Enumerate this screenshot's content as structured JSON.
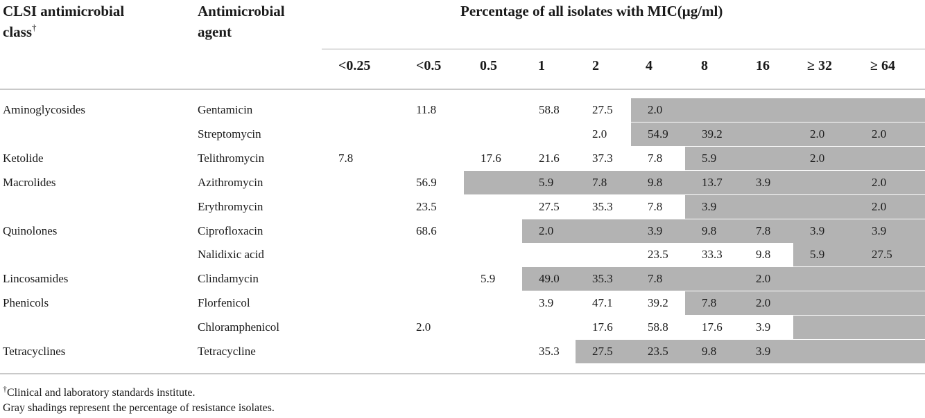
{
  "header": {
    "class_label": "CLSI antimicrobial",
    "class_label_2": "class",
    "class_mark": "†",
    "agent_label": "Antimicrobial",
    "agent_label_2": "agent",
    "percentage_label": "Percentage of all isolates with MIC(μg/ml)"
  },
  "mic_columns": [
    "<0.25",
    "<0.5",
    "0.5",
    "1",
    "2",
    "4",
    "8",
    "16",
    "≥ 32",
    "≥ 64"
  ],
  "rows": [
    {
      "class": "Aminoglycosides",
      "agent": "Gentamicin",
      "values": [
        "",
        "11.8",
        "",
        "58.8",
        "27.5",
        "2.0",
        "",
        "",
        "",
        ""
      ],
      "resistant": [
        false,
        false,
        false,
        false,
        false,
        true,
        true,
        true,
        true,
        true
      ]
    },
    {
      "class": "",
      "agent": "Streptomycin",
      "values": [
        "",
        "",
        "",
        "",
        "2.0",
        "54.9",
        "39.2",
        "",
        "2.0",
        "2.0"
      ],
      "resistant": [
        false,
        false,
        false,
        false,
        false,
        true,
        true,
        true,
        true,
        true
      ]
    },
    {
      "class": "Ketolide",
      "agent": "Telithromycin",
      "values": [
        "7.8",
        "",
        "17.6",
        "21.6",
        "37.3",
        "7.8",
        "5.9",
        "",
        "2.0",
        ""
      ],
      "resistant": [
        false,
        false,
        false,
        false,
        false,
        false,
        true,
        true,
        true,
        true
      ]
    },
    {
      "class": "Macrolides",
      "agent": "Azithromycin",
      "values": [
        "",
        "56.9",
        "",
        "5.9",
        "7.8",
        "9.8",
        "13.7",
        "3.9",
        "",
        "2.0"
      ],
      "resistant": [
        false,
        false,
        true,
        true,
        true,
        true,
        true,
        true,
        true,
        true
      ]
    },
    {
      "class": "",
      "agent": "Erythromycin",
      "values": [
        "",
        "23.5",
        "",
        "27.5",
        "35.3",
        "7.8",
        "3.9",
        "",
        "",
        "2.0"
      ],
      "resistant": [
        false,
        false,
        false,
        false,
        false,
        false,
        true,
        true,
        true,
        true
      ]
    },
    {
      "class": "Quinolones",
      "agent": "Ciprofloxacin",
      "values": [
        "",
        "68.6",
        "",
        "2.0",
        "",
        "3.9",
        "9.8",
        "7.8",
        "3.9",
        "3.9"
      ],
      "resistant": [
        false,
        false,
        false,
        true,
        true,
        true,
        true,
        true,
        true,
        true
      ]
    },
    {
      "class": "",
      "agent": "Nalidixic acid",
      "values": [
        "",
        "",
        "",
        "",
        "",
        "23.5",
        "33.3",
        "9.8",
        "5.9",
        "27.5"
      ],
      "resistant": [
        false,
        false,
        false,
        false,
        false,
        false,
        false,
        false,
        true,
        true
      ]
    },
    {
      "class": "Lincosamides",
      "agent": "Clindamycin",
      "values": [
        "",
        "",
        "5.9",
        "49.0",
        "35.3",
        "7.8",
        "",
        "2.0",
        "",
        ""
      ],
      "resistant": [
        false,
        false,
        false,
        true,
        true,
        true,
        true,
        true,
        true,
        true
      ]
    },
    {
      "class": "Phenicols",
      "agent": "Florfenicol",
      "values": [
        "",
        "",
        "",
        "3.9",
        "47.1",
        "39.2",
        "7.8",
        "2.0",
        "",
        ""
      ],
      "resistant": [
        false,
        false,
        false,
        false,
        false,
        false,
        true,
        true,
        true,
        true
      ]
    },
    {
      "class": "",
      "agent": "Chloramphenicol",
      "values": [
        "",
        "2.0",
        "",
        "",
        "17.6",
        "58.8",
        "17.6",
        "3.9",
        "",
        ""
      ],
      "resistant": [
        false,
        false,
        false,
        false,
        false,
        false,
        false,
        false,
        true,
        true
      ]
    },
    {
      "class": "Tetracyclines",
      "agent": "Tetracycline",
      "values": [
        "",
        "",
        "",
        "35.3",
        "27.5",
        "23.5",
        "9.8",
        "3.9",
        "",
        ""
      ],
      "resistant": [
        false,
        false,
        false,
        false,
        true,
        true,
        true,
        true,
        true,
        true
      ]
    }
  ],
  "footnotes": {
    "mark": "†",
    "note_1": "Clinical and laboratory standards institute.",
    "note_2": "Gray shadings represent the percentage of resistance isolates."
  },
  "colors": {
    "shade": "#b3b3b3",
    "rule": "#c9c9c9"
  }
}
